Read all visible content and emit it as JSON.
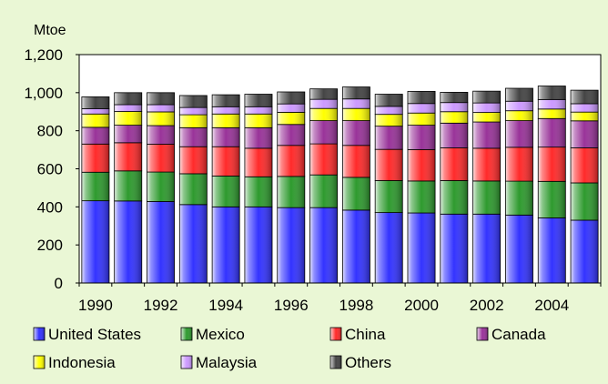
{
  "chart_data": {
    "type": "bar",
    "stacked": true,
    "unit": "Mtoe",
    "ylim": [
      0,
      1200
    ],
    "y_ticks": [
      "0",
      "200",
      "400",
      "600",
      "800",
      "1,000",
      "1,200"
    ],
    "y_tick_values": [
      0,
      200,
      400,
      600,
      800,
      1000,
      1200
    ],
    "categories": [
      "1990",
      "1991",
      "1992",
      "1993",
      "1994",
      "1995",
      "1996",
      "1997",
      "1998",
      "1999",
      "2000",
      "2001",
      "2002",
      "2003",
      "2004",
      "2005"
    ],
    "x_tick_labels": [
      "1990",
      "",
      "1992",
      "",
      "1994",
      "",
      "1996",
      "",
      "1998",
      "",
      "2000",
      "",
      "2002",
      "",
      "2004",
      ""
    ],
    "grid": false,
    "legend_position": "bottom",
    "series": [
      {
        "name": "United States",
        "color": "#3333FF",
        "values": [
          432,
          431,
          428,
          412,
          400,
          400,
          396,
          396,
          383,
          370,
          368,
          362,
          362,
          357,
          342,
          330
        ]
      },
      {
        "name": "Mexico",
        "color": "#2E9A2E",
        "values": [
          150,
          158,
          155,
          162,
          162,
          158,
          164,
          172,
          172,
          168,
          168,
          176,
          174,
          178,
          192,
          196
        ]
      },
      {
        "name": "China",
        "color": "#FF2A2A",
        "values": [
          148,
          148,
          146,
          142,
          154,
          150,
          163,
          163,
          168,
          164,
          165,
          172,
          172,
          178,
          180,
          184
        ]
      },
      {
        "name": "Canada",
        "color": "#993399",
        "values": [
          88,
          92,
          98,
          100,
          100,
          108,
          110,
          122,
          130,
          122,
          128,
          130,
          138,
          140,
          150,
          142
        ]
      },
      {
        "name": "Indonesia",
        "color": "#FFFF00",
        "values": [
          70,
          72,
          72,
          68,
          72,
          72,
          64,
          64,
          64,
          62,
          64,
          60,
          50,
          52,
          50,
          46
        ]
      },
      {
        "name": "Malaysia",
        "color": "#CC99FF",
        "values": [
          28,
          36,
          38,
          38,
          38,
          38,
          44,
          48,
          50,
          42,
          50,
          48,
          50,
          50,
          50,
          44
        ]
      },
      {
        "name": "Others",
        "color": "#444444",
        "values": [
          62,
          63,
          63,
          63,
          63,
          66,
          63,
          55,
          63,
          64,
          64,
          54,
          62,
          68,
          71,
          71
        ]
      }
    ]
  }
}
